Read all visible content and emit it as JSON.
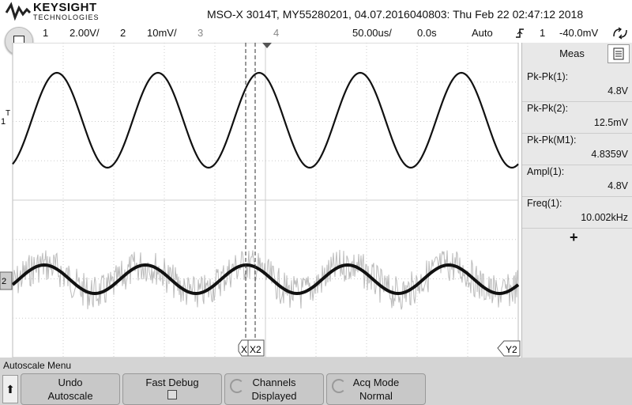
{
  "brand": {
    "name": "KEYSIGHT",
    "sub": "TECHNOLOGIES"
  },
  "title": "MSO-X 3014T, MY55280201, 04.07.2016040803: Thu Feb 22 02:47:12 2018",
  "channels": [
    {
      "num": "1",
      "scale": "2.00V/"
    },
    {
      "num": "2",
      "scale": "10mV/"
    },
    {
      "num": "3"
    },
    {
      "num": "4"
    }
  ],
  "timebase": {
    "scale": "50.00us/",
    "delay": "0.0s"
  },
  "trigger": {
    "mode": "Auto",
    "icon": "rising-edge-icon",
    "source": "1",
    "level": "-40.0mV"
  },
  "markers": {
    "ch1": "1",
    "ch2": "2",
    "trig": "T",
    "x1": "X",
    "x2": "X2",
    "y2": "Y2"
  },
  "measurements": {
    "tab": "Meas",
    "items": [
      {
        "label": "Pk-Pk(1):",
        "value": "4.8V"
      },
      {
        "label": "Pk-Pk(2):",
        "value": "12.5mV"
      },
      {
        "label": "Pk-Pk(M1):",
        "value": "4.8359V"
      },
      {
        "label": "Ampl(1):",
        "value": "4.8V"
      },
      {
        "label": "Freq(1):",
        "value": "10.002kHz"
      }
    ],
    "add": "+"
  },
  "softkeys": {
    "title": "Autoscale Menu",
    "keys": [
      {
        "l1": "Undo",
        "l2": "Autoscale"
      },
      {
        "l1": "Fast Debug",
        "l2": ""
      },
      {
        "l1": "Channels",
        "l2": "Displayed"
      },
      {
        "l1": "Acq Mode",
        "l2": "Normal"
      }
    ]
  },
  "colors": {
    "trace": "#111111",
    "noise": "#bbbbbb",
    "grid": "#cccccc"
  }
}
